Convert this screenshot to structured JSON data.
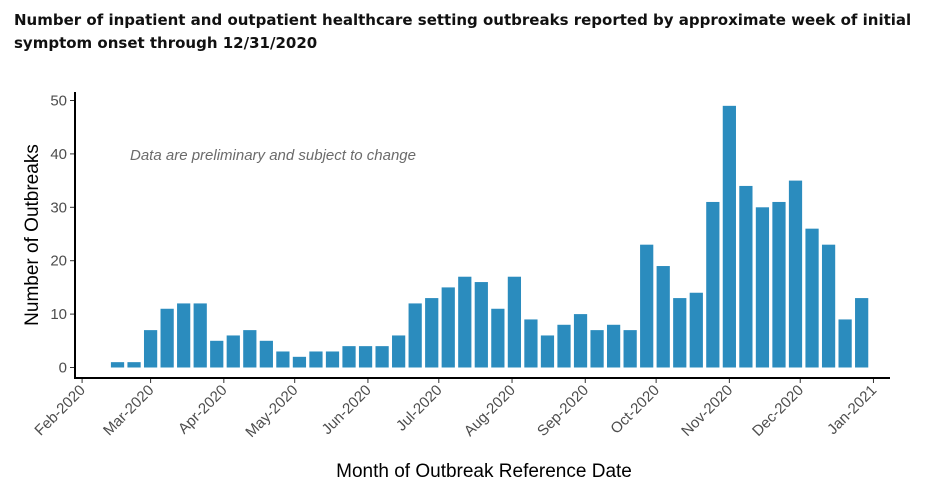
{
  "chart_data": {
    "type": "bar",
    "title": "Number of inpatient and outpatient healthcare setting outbreaks reported by approximate week of initial symptom onset through 12/31/2020",
    "xlabel": "Month of Outbreak Reference Date",
    "ylabel": "Number of Outbreaks",
    "annotation": "Data are preliminary and subject to change",
    "ylim": [
      0,
      50
    ],
    "yticks": [
      0,
      10,
      20,
      30,
      40,
      50
    ],
    "xlim": [
      "2020-01-29",
      "2021-01-08"
    ],
    "xticks": [
      {
        "date": "2020-02-01",
        "label": "Feb-2020"
      },
      {
        "date": "2020-03-01",
        "label": "Mar-2020"
      },
      {
        "date": "2020-04-01",
        "label": "Apr-2020"
      },
      {
        "date": "2020-05-01",
        "label": "May-2020"
      },
      {
        "date": "2020-06-01",
        "label": "Jun-2020"
      },
      {
        "date": "2020-07-01",
        "label": "Jul-2020"
      },
      {
        "date": "2020-08-01",
        "label": "Aug-2020"
      },
      {
        "date": "2020-09-01",
        "label": "Sep-2020"
      },
      {
        "date": "2020-10-01",
        "label": "Oct-2020"
      },
      {
        "date": "2020-11-01",
        "label": "Nov-2020"
      },
      {
        "date": "2020-12-01",
        "label": "Dec-2020"
      },
      {
        "date": "2021-01-01",
        "label": "Jan-2021"
      }
    ],
    "bar_color": "#2b8cbe",
    "grid": false,
    "week_dates": [
      "2020-02-16",
      "2020-02-23",
      "2020-03-01",
      "2020-03-08",
      "2020-03-15",
      "2020-03-22",
      "2020-03-29",
      "2020-04-05",
      "2020-04-12",
      "2020-04-19",
      "2020-04-26",
      "2020-05-03",
      "2020-05-10",
      "2020-05-17",
      "2020-05-24",
      "2020-05-31",
      "2020-06-07",
      "2020-06-14",
      "2020-06-21",
      "2020-06-28",
      "2020-07-05",
      "2020-07-12",
      "2020-07-19",
      "2020-07-26",
      "2020-08-02",
      "2020-08-09",
      "2020-08-16",
      "2020-08-23",
      "2020-08-30",
      "2020-09-06",
      "2020-09-13",
      "2020-09-20",
      "2020-09-27",
      "2020-10-04",
      "2020-10-11",
      "2020-10-18",
      "2020-10-25",
      "2020-11-01",
      "2020-11-08",
      "2020-11-15",
      "2020-11-22",
      "2020-11-29",
      "2020-12-06",
      "2020-12-13",
      "2020-12-20",
      "2020-12-27"
    ],
    "values": [
      1,
      1,
      7,
      11,
      12,
      12,
      5,
      6,
      7,
      5,
      3,
      2,
      3,
      3,
      4,
      4,
      4,
      6,
      12,
      13,
      15,
      17,
      16,
      11,
      17,
      9,
      6,
      8,
      10,
      7,
      8,
      7,
      23,
      19,
      13,
      14,
      31,
      49,
      34,
      30,
      31,
      35,
      26,
      23,
      9,
      13
    ]
  }
}
